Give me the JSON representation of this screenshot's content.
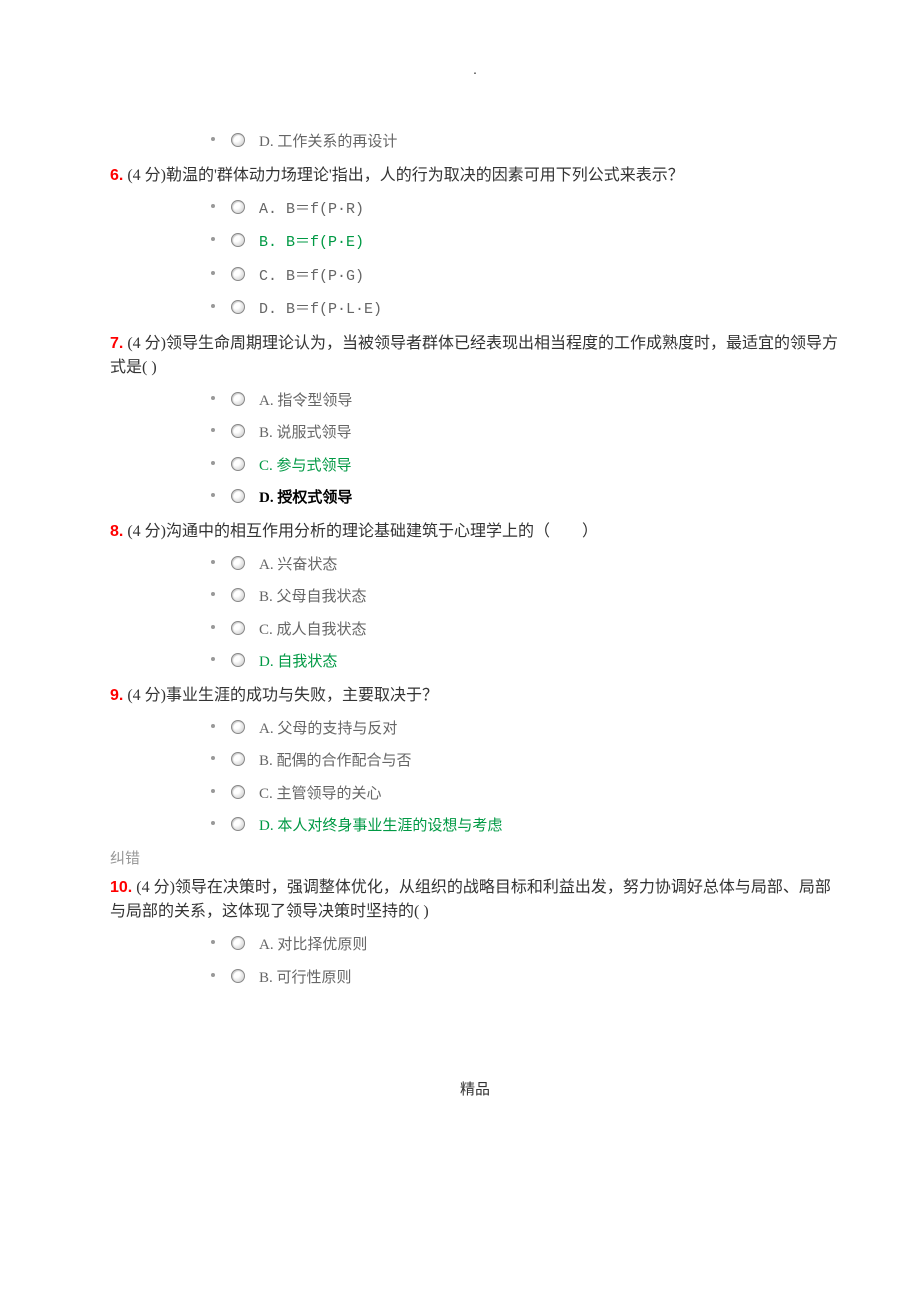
{
  "top_dot": ".",
  "footer": "精品",
  "jiucuo_label": "纠错",
  "colors": {
    "qnum": "#ff0000",
    "correct": "#009944",
    "body_text": "#333333",
    "option_text": "#666666",
    "bold_option": "#000000",
    "muted": "#999999",
    "background": "#ffffff"
  },
  "q5_opt_d": "D. 工作关系的再设计",
  "q6": {
    "num": "6.",
    "text": "(4 分)勒温的'群体动力场理论'指出，人的行为取决的因素可用下列公式来表示？",
    "opts": {
      "a": "A. B＝f(P·R)",
      "b": "B. B＝f(P·E)",
      "c": "C. B＝f(P·G)",
      "d": "D. B＝f(P·L·E)"
    }
  },
  "q7": {
    "num": "7.",
    "text": "(4 分)领导生命周期理论认为，当被领导者群体已经表现出相当程度的工作成熟度时，最适宜的领导方式是( )",
    "opts": {
      "a": "A. 指令型领导",
      "b": "B. 说服式领导",
      "c": "C. 参与式领导",
      "d": "D. 授权式领导"
    }
  },
  "q8": {
    "num": "8.",
    "text": "(4 分)沟通中的相互作用分析的理论基础建筑于心理学上的（　　）",
    "opts": {
      "a": "A. 兴奋状态",
      "b": "B. 父母自我状态",
      "c": "C. 成人自我状态",
      "d": "D. 自我状态"
    }
  },
  "q9": {
    "num": "9.",
    "text": "(4 分)事业生涯的成功与失败，主要取决于？",
    "opts": {
      "a": "A. 父母的支持与反对",
      "b": "B. 配偶的合作配合与否",
      "c": "C. 主管领导的关心",
      "d": "D. 本人对终身事业生涯的设想与考虑"
    }
  },
  "q10": {
    "num": "10.",
    "text": "(4 分)领导在决策时，强调整体优化，从组织的战略目标和利益出发，努力协调好总体与局部、局部与局部的关系，这体现了领导决策时坚持的( )",
    "opts": {
      "a": "A. 对比择优原则",
      "b": "B. 可行性原则"
    }
  }
}
